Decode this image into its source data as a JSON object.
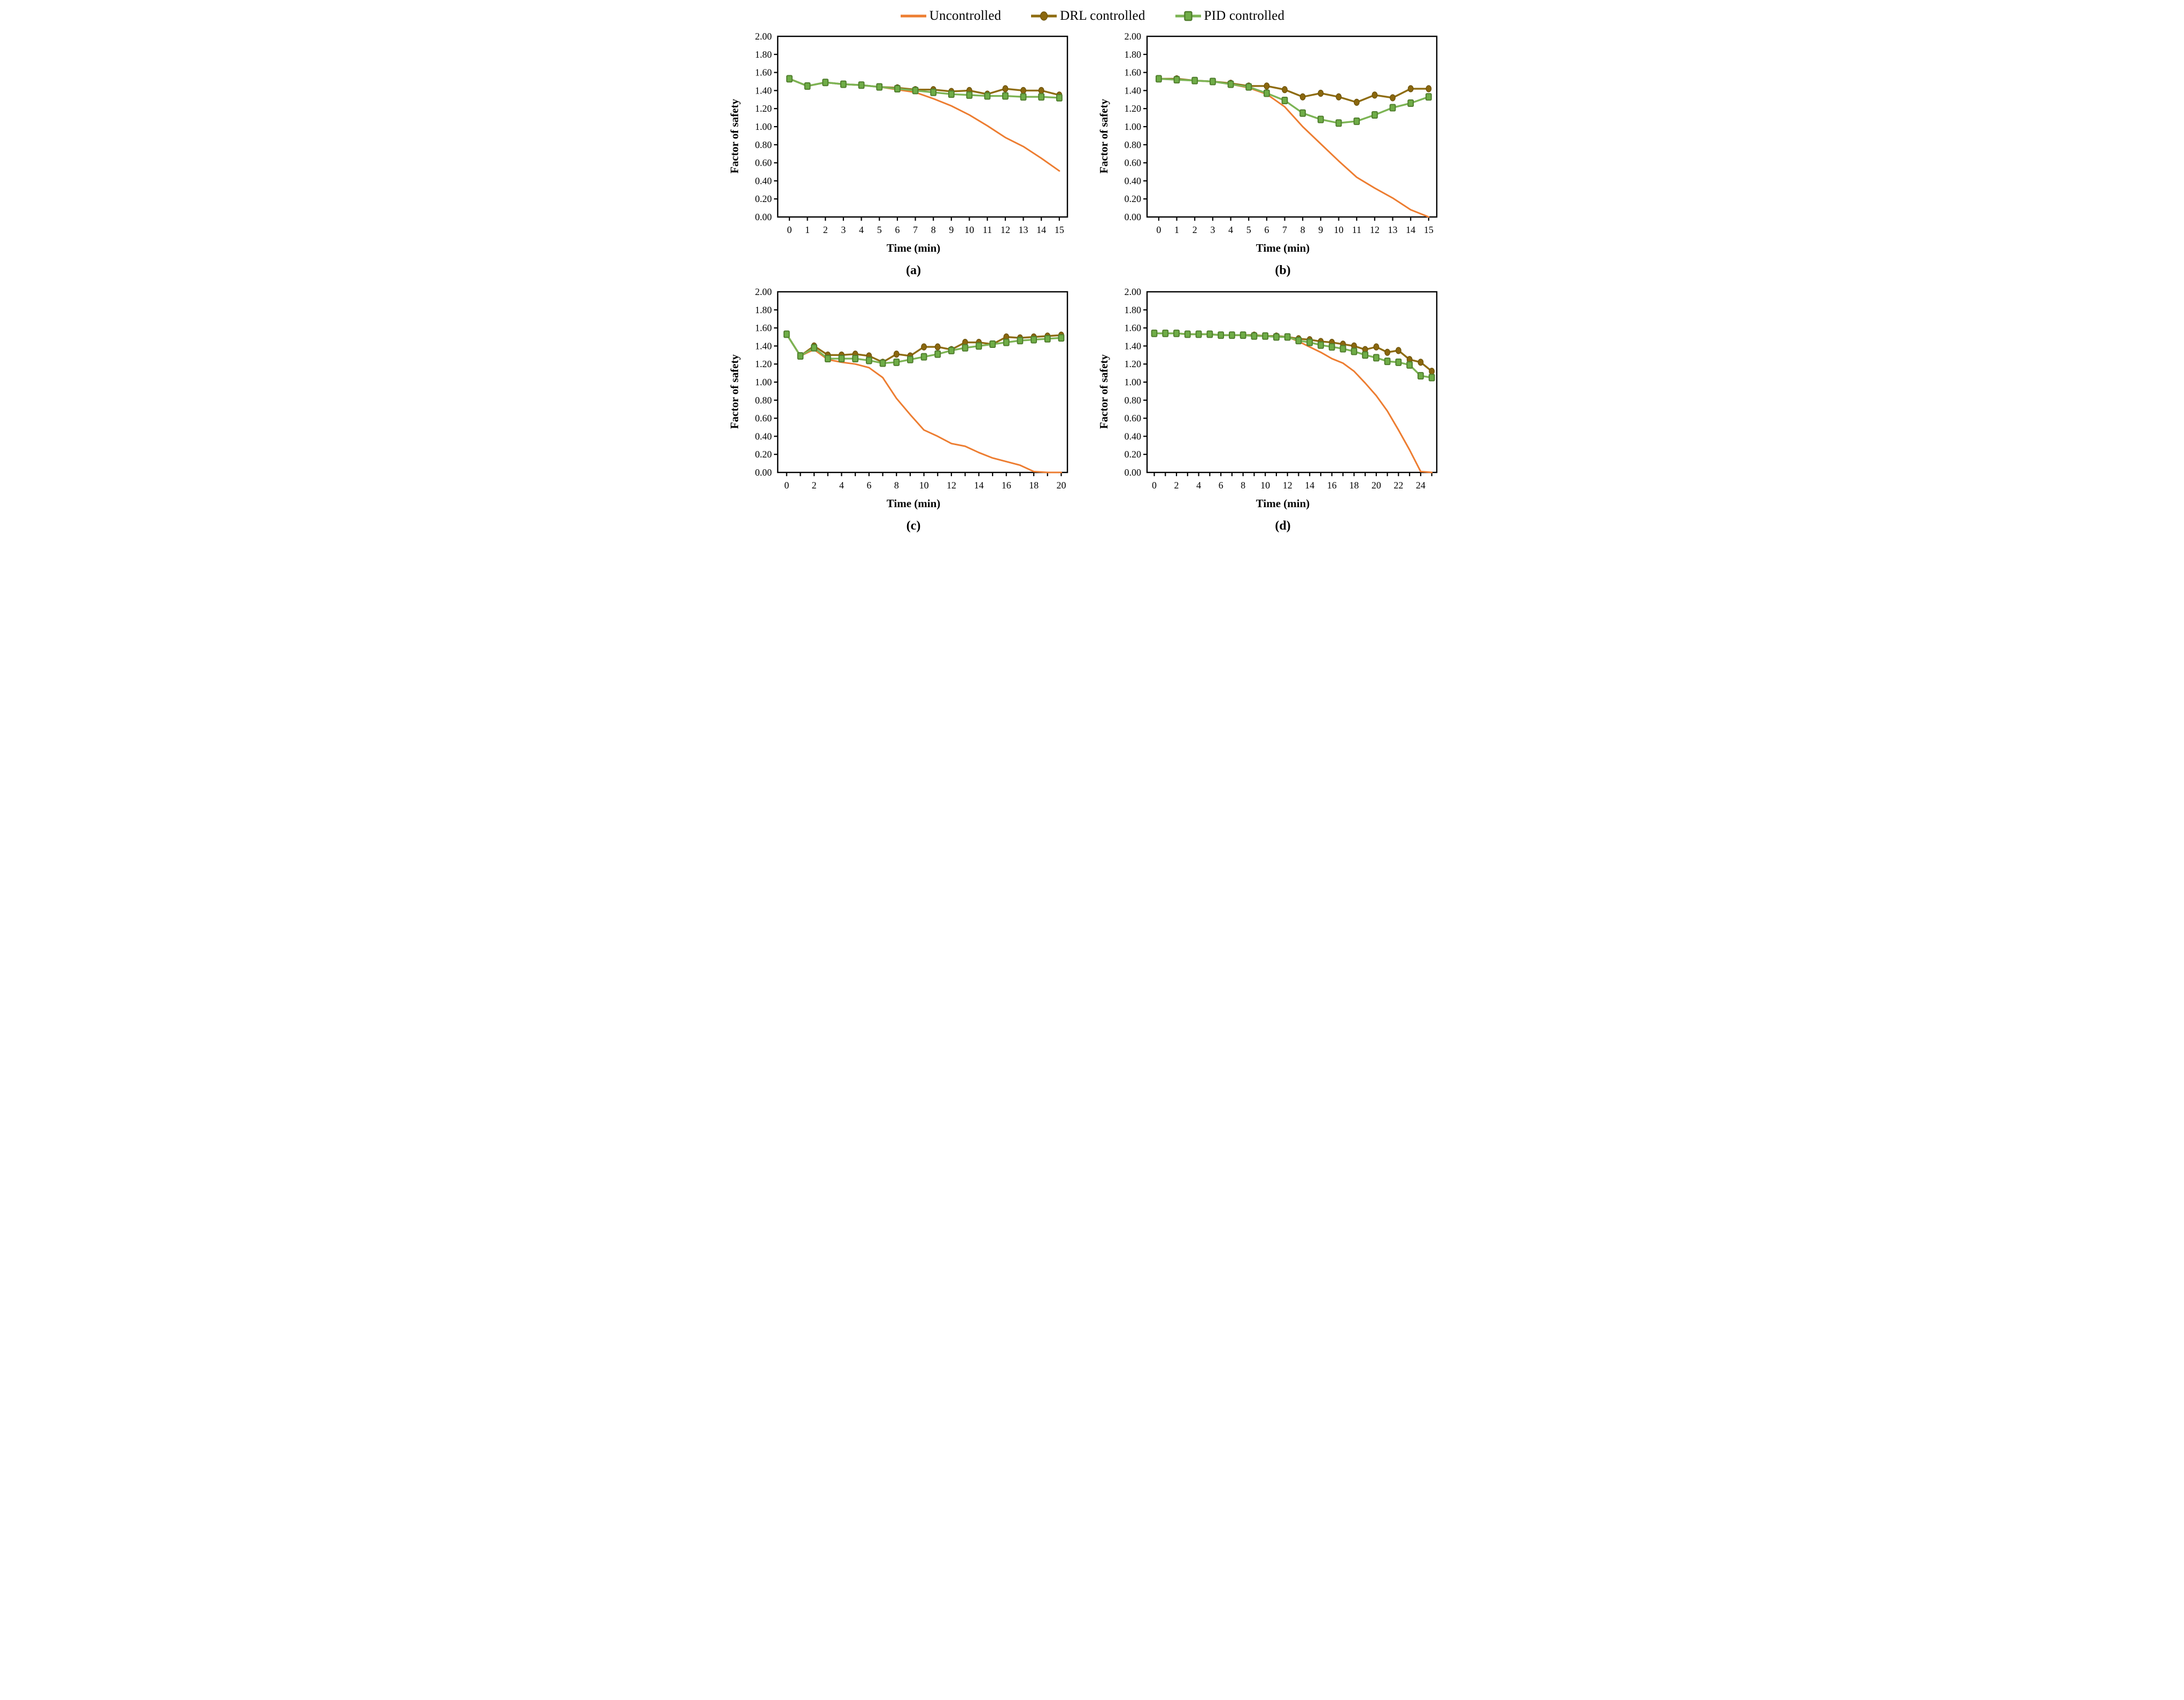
{
  "figure": {
    "background": "#ffffff",
    "y_axis_title": "Factor of safety",
    "x_axis_title": "Time (min)"
  },
  "colors": {
    "uncontrolled_line": "#ED7D31",
    "drl_line": "#8E6C10",
    "drl_marker_fill": "#8A670E",
    "drl_marker_border": "#6B520A",
    "pid_line": "#7CB454",
    "pid_marker_fill": "#6FAD47",
    "pid_marker_border": "#507E2E",
    "axis": "#000000",
    "tick_text": "#000000"
  },
  "legend": {
    "items": [
      {
        "name": "Uncontrolled",
        "marker": "none",
        "series_key": "Uncontrolled"
      },
      {
        "name": "DRL controlled",
        "marker": "circle",
        "series_key": "DRL controlled"
      },
      {
        "name": "PID controlled",
        "marker": "square",
        "series_key": "PID controlled"
      }
    ]
  },
  "chart_data": [
    {
      "type": "line",
      "panel_label": "(a)",
      "xlabel": "Time (min)",
      "ylabel": "Factor of safety",
      "xlim": [
        0,
        15
      ],
      "ylim": [
        0.0,
        2.0
      ],
      "ytick_step": 0.2,
      "xtick_label_every": 1,
      "grid": false,
      "x": [
        0,
        1,
        2,
        3,
        4,
        5,
        6,
        7,
        8,
        9,
        10,
        11,
        12,
        13,
        14,
        15
      ],
      "series": [
        {
          "name": "Uncontrolled",
          "values": [
            1.53,
            1.45,
            1.49,
            1.47,
            1.46,
            1.44,
            1.41,
            1.38,
            1.31,
            1.23,
            1.13,
            1.01,
            0.88,
            0.78,
            0.65,
            0.51
          ]
        },
        {
          "name": "DRL controlled",
          "values": [
            1.53,
            1.45,
            1.49,
            1.47,
            1.46,
            1.44,
            1.43,
            1.41,
            1.41,
            1.39,
            1.4,
            1.36,
            1.42,
            1.4,
            1.4,
            1.35
          ]
        },
        {
          "name": "PID controlled",
          "values": [
            1.53,
            1.45,
            1.49,
            1.47,
            1.46,
            1.44,
            1.42,
            1.4,
            1.38,
            1.36,
            1.35,
            1.34,
            1.34,
            1.33,
            1.33,
            1.32
          ]
        }
      ]
    },
    {
      "type": "line",
      "panel_label": "(b)",
      "xlabel": "Time (min)",
      "ylabel": "Factor of safety",
      "xlim": [
        0,
        15
      ],
      "ylim": [
        0.0,
        2.0
      ],
      "ytick_step": 0.2,
      "xtick_label_every": 1,
      "grid": false,
      "x": [
        0,
        1,
        2,
        3,
        4,
        5,
        6,
        7,
        8,
        9,
        10,
        11,
        12,
        13,
        14,
        15
      ],
      "series": [
        {
          "name": "Uncontrolled",
          "values": [
            1.53,
            1.52,
            1.51,
            1.5,
            1.47,
            1.43,
            1.36,
            1.22,
            1.0,
            0.81,
            0.62,
            0.44,
            0.32,
            0.21,
            0.08,
            0.0
          ]
        },
        {
          "name": "DRL controlled",
          "values": [
            1.53,
            1.53,
            1.51,
            1.5,
            1.48,
            1.45,
            1.45,
            1.41,
            1.33,
            1.37,
            1.33,
            1.27,
            1.35,
            1.32,
            1.42,
            1.42
          ]
        },
        {
          "name": "PID controlled",
          "values": [
            1.53,
            1.52,
            1.51,
            1.5,
            1.47,
            1.44,
            1.37,
            1.29,
            1.15,
            1.08,
            1.04,
            1.06,
            1.13,
            1.21,
            1.26,
            1.33
          ]
        }
      ]
    },
    {
      "type": "line",
      "panel_label": "(c)",
      "xlabel": "Time (min)",
      "ylabel": "Factor of safety",
      "xlim": [
        0,
        20
      ],
      "ylim": [
        0.0,
        2.0
      ],
      "ytick_step": 0.2,
      "xtick_label_every": 2,
      "grid": false,
      "x": [
        0,
        1,
        2,
        3,
        4,
        5,
        6,
        7,
        8,
        9,
        10,
        11,
        12,
        13,
        14,
        15,
        16,
        17,
        18,
        19,
        20
      ],
      "series": [
        {
          "name": "Uncontrolled",
          "values": [
            1.53,
            1.29,
            1.36,
            1.25,
            1.22,
            1.2,
            1.16,
            1.05,
            0.82,
            0.64,
            0.47,
            0.4,
            0.32,
            0.29,
            0.22,
            0.16,
            0.12,
            0.08,
            0.01,
            0.0,
            0.0
          ]
        },
        {
          "name": "DRL controlled",
          "values": [
            1.53,
            1.29,
            1.4,
            1.3,
            1.3,
            1.31,
            1.29,
            1.22,
            1.31,
            1.29,
            1.39,
            1.39,
            1.36,
            1.44,
            1.44,
            1.42,
            1.5,
            1.49,
            1.5,
            1.51,
            1.52
          ]
        },
        {
          "name": "PID controlled",
          "values": [
            1.53,
            1.29,
            1.38,
            1.26,
            1.26,
            1.26,
            1.24,
            1.21,
            1.22,
            1.25,
            1.28,
            1.31,
            1.35,
            1.38,
            1.4,
            1.42,
            1.44,
            1.46,
            1.47,
            1.48,
            1.49
          ]
        }
      ]
    },
    {
      "type": "line",
      "panel_label": "(d)",
      "xlabel": "Time (min)",
      "ylabel": "Factor of safety",
      "xlim": [
        0,
        25
      ],
      "xtick_max_label": 24,
      "ylim": [
        0.0,
        2.0
      ],
      "ytick_step": 0.2,
      "xtick_label_every": 2,
      "grid": false,
      "x": [
        0,
        1,
        2,
        3,
        4,
        5,
        6,
        7,
        8,
        9,
        10,
        11,
        12,
        13,
        14,
        15,
        16,
        17,
        18,
        19,
        20,
        21,
        22,
        23,
        24,
        25
      ],
      "series": [
        {
          "name": "Uncontrolled",
          "values": [
            1.54,
            1.54,
            1.54,
            1.53,
            1.53,
            1.53,
            1.52,
            1.52,
            1.52,
            1.51,
            1.51,
            1.5,
            1.5,
            1.45,
            1.39,
            1.33,
            1.26,
            1.21,
            1.12,
            0.99,
            0.85,
            0.68,
            0.47,
            0.25,
            0.01,
            0.0
          ]
        },
        {
          "name": "DRL controlled",
          "values": [
            1.54,
            1.54,
            1.54,
            1.53,
            1.53,
            1.53,
            1.52,
            1.52,
            1.52,
            1.52,
            1.51,
            1.51,
            1.5,
            1.48,
            1.47,
            1.45,
            1.44,
            1.42,
            1.4,
            1.36,
            1.39,
            1.33,
            1.35,
            1.25,
            1.22,
            1.12
          ]
        },
        {
          "name": "PID controlled",
          "values": [
            1.54,
            1.54,
            1.54,
            1.53,
            1.53,
            1.53,
            1.52,
            1.52,
            1.52,
            1.51,
            1.51,
            1.5,
            1.5,
            1.46,
            1.44,
            1.41,
            1.39,
            1.37,
            1.34,
            1.3,
            1.27,
            1.23,
            1.22,
            1.19,
            1.07,
            1.05
          ]
        }
      ]
    }
  ]
}
